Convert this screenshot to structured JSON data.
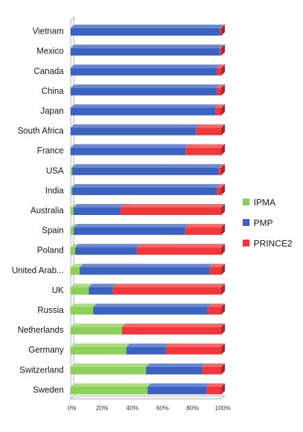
{
  "chart_data": {
    "type": "bar",
    "stacked": "percent",
    "orientation": "horizontal",
    "title": "",
    "xlabel": "",
    "ylabel": "",
    "xlim": [
      0,
      100
    ],
    "x_ticks": [
      "0%",
      "20%",
      "40%",
      "60%",
      "80%",
      "100%"
    ],
    "categories": [
      "Vietnam",
      "Mexico",
      "Canada",
      "China",
      "Japan",
      "South Africa",
      "France",
      "USA",
      "India",
      "Australia",
      "Spain",
      "Poland",
      "United Arab...",
      "UK",
      "Russia",
      "Netherlands",
      "Germany",
      "Switzerland",
      "Sweden"
    ],
    "series": [
      {
        "name": "IPMA",
        "color": "#8cd05a",
        "values": [
          0,
          0,
          0,
          0,
          0,
          0,
          0,
          1,
          1,
          2,
          2,
          3,
          6,
          12,
          15,
          34,
          37,
          50,
          51
        ]
      },
      {
        "name": "PMP",
        "color": "#3b62c0",
        "values": [
          99,
          99,
          97,
          97,
          96,
          83,
          76,
          97,
          96,
          31,
          74,
          41,
          86,
          16,
          76,
          0,
          26,
          37,
          39
        ]
      },
      {
        "name": "PRINCE2",
        "color": "#f0383b",
        "values": [
          1,
          1,
          3,
          3,
          4,
          17,
          24,
          2,
          3,
          67,
          24,
          56,
          8,
          72,
          9,
          66,
          37,
          13,
          10
        ]
      }
    ],
    "legend_position": "right",
    "grid": false
  }
}
